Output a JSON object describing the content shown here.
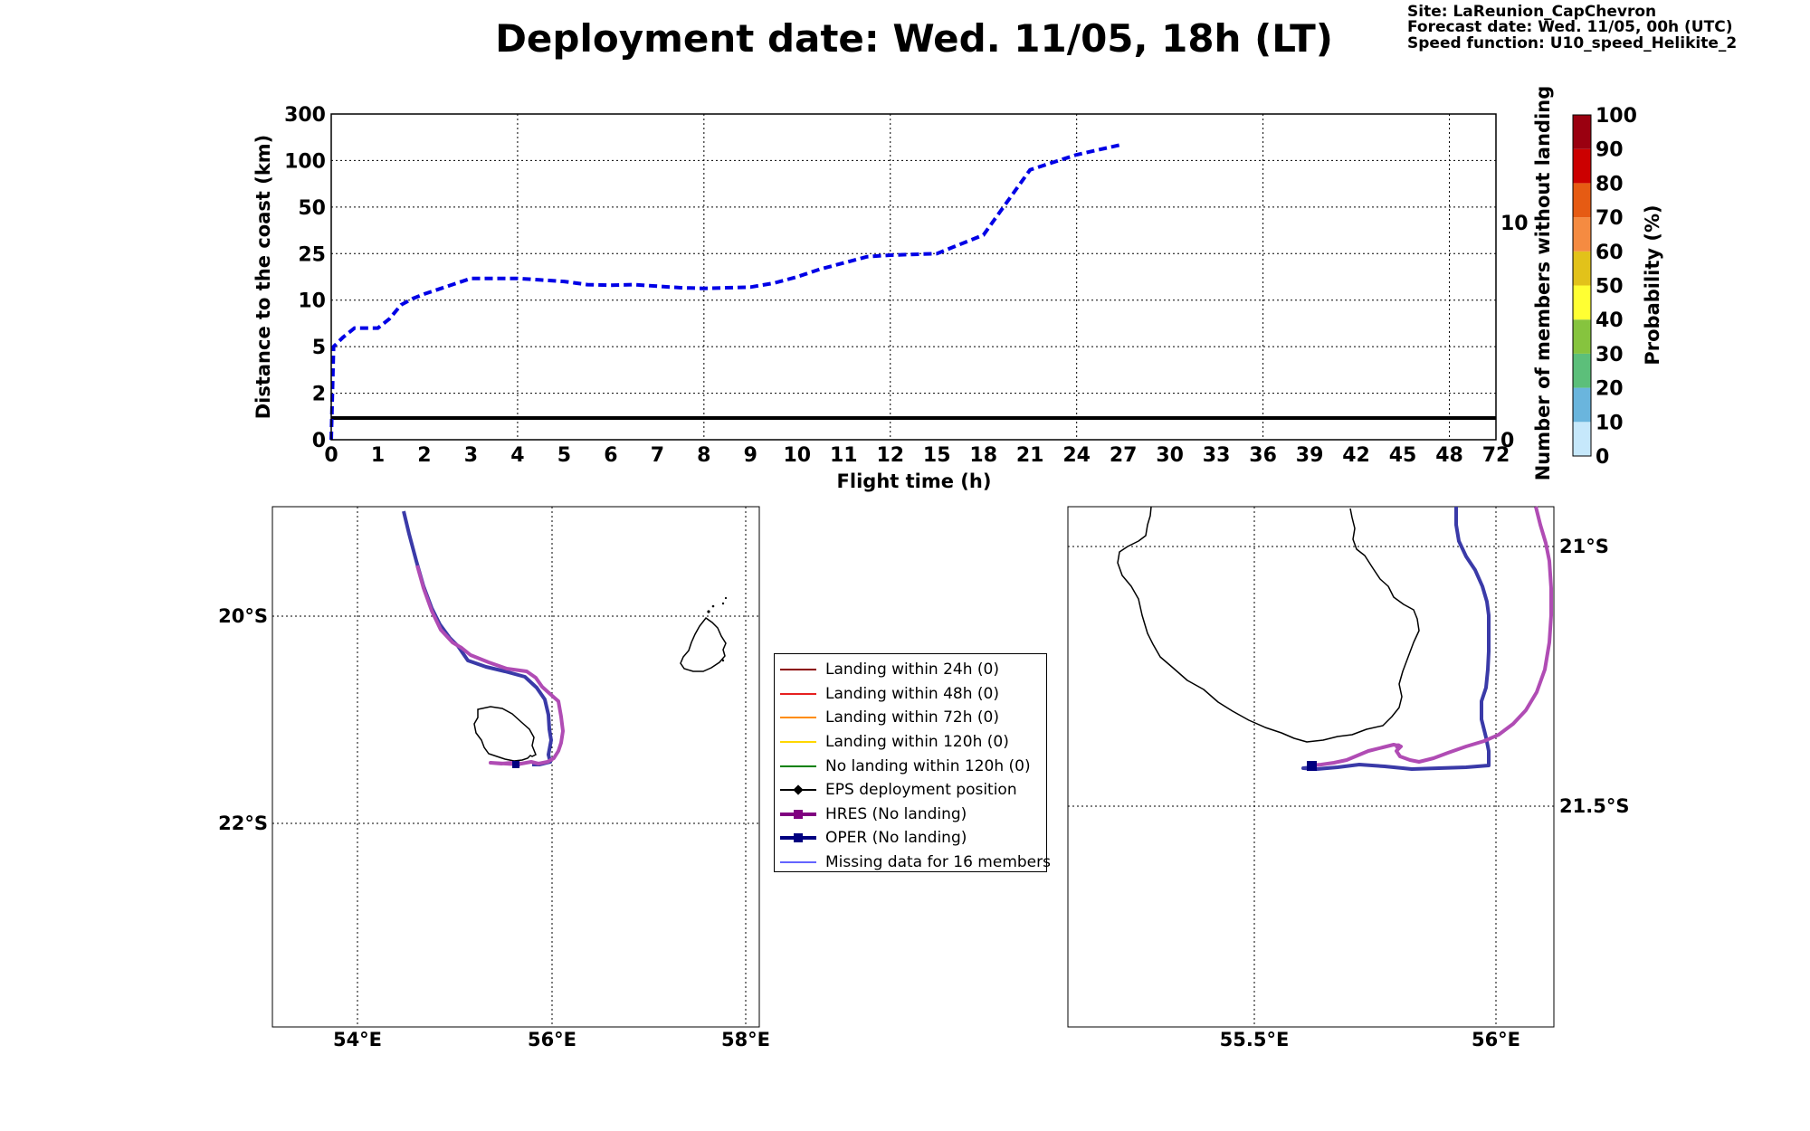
{
  "title": "Deployment date: Wed. 11/05, 18h (LT)",
  "info": {
    "site": "Site: LaReunion_CapChevron",
    "forecast": "Forecast date: Wed. 11/05, 00h (UTC)",
    "speed": "Speed function: U10_speed_Helikite_2"
  },
  "colors": {
    "oper": "#3a3aa8",
    "hres": "#b04cb4",
    "distance_line": "#0000e6",
    "members_line": "#000000",
    "coast": "#000000"
  },
  "chart_data": [
    {
      "type": "line",
      "xlabel": "Flight time (h)",
      "ylabel": "Distance to the coast (km)",
      "y2label": "Number of members without landing",
      "x_ticks": [
        "0",
        "1",
        "2",
        "3",
        "4",
        "5",
        "6",
        "7",
        "8",
        "9",
        "10",
        "11",
        "12",
        "15",
        "18",
        "21",
        "24",
        "27",
        "30",
        "33",
        "36",
        "39",
        "42",
        "45",
        "48",
        "72"
      ],
      "y_ticks": [
        "0",
        "2",
        "5",
        "10",
        "25",
        "50",
        "100",
        "300"
      ],
      "y2_ticks": [
        "0",
        "10"
      ],
      "grid": true,
      "series": [
        {
          "x": [
            0,
            0.05,
            0.25,
            0.5,
            0.75,
            1,
            1.25,
            1.5,
            1.75,
            2,
            2.5,
            3,
            3.5,
            4,
            4.5,
            5,
            5.5,
            6,
            6.5,
            7,
            7.5,
            8,
            8.5,
            9,
            9.5,
            10,
            10.5,
            11,
            11.5,
            12,
            15,
            18,
            21,
            24,
            27
          ],
          "y": [
            0,
            5,
            6,
            7,
            7,
            7,
            8,
            9.5,
            10.5,
            12,
            14.5,
            17,
            17,
            17,
            16.5,
            16,
            15,
            14.8,
            15,
            14.5,
            14,
            13.8,
            14,
            14.2,
            15.5,
            17.5,
            20,
            22,
            24,
            24.5,
            25,
            35,
            90,
            125,
            170
          ]
        },
        {
          "x": [
            0,
            72
          ],
          "y2": [
            1,
            1
          ]
        }
      ]
    },
    {
      "type": "heatmap",
      "colorbar_label": "Probability (%)",
      "ticks": [
        "0",
        "10",
        "20",
        "30",
        "40",
        "50",
        "60",
        "70",
        "80",
        "90",
        "100"
      ],
      "colors": [
        "#c6e8fb",
        "#6ab5dd",
        "#5cbf7a",
        "#86c43e",
        "#ffff33",
        "#e2c21a",
        "#f58b41",
        "#e65b13",
        "#cc0000",
        "#9a0010"
      ]
    },
    {
      "type": "scatter",
      "x_ticks": [
        "54°E",
        "56°E",
        "58°E"
      ],
      "y_ticks": [
        "20°S",
        "22°S"
      ],
      "grid": true
    },
    {
      "type": "scatter",
      "x_ticks": [
        "55.5°E",
        "56°E"
      ],
      "y_ticks": [
        "21°S",
        "21.5°S"
      ],
      "grid": true
    }
  ],
  "legend": [
    {
      "label": "Landing within 24h (0)",
      "color": "#8b0000",
      "marker": "none",
      "width": 2
    },
    {
      "label": "Landing within 48h (0)",
      "color": "#e62020",
      "marker": "none",
      "width": 2
    },
    {
      "label": "Landing within 72h (0)",
      "color": "#ff8c00",
      "marker": "none",
      "width": 2
    },
    {
      "label": "Landing within 120h (0)",
      "color": "#ffd700",
      "marker": "none",
      "width": 2
    },
    {
      "label": "No landing within 120h (0)",
      "color": "#008000",
      "marker": "none",
      "width": 2
    },
    {
      "label": "EPS deployment position",
      "color": "#000000",
      "marker": "diamond",
      "width": 2
    },
    {
      "label": "HRES (No landing)",
      "color": "#800080",
      "marker": "square",
      "width": 4
    },
    {
      "label": "OPER (No landing)",
      "color": "#000080",
      "marker": "square",
      "width": 4
    },
    {
      "label": "Missing data for 16 members",
      "color": "#6464ff",
      "marker": "none",
      "width": 2
    }
  ]
}
